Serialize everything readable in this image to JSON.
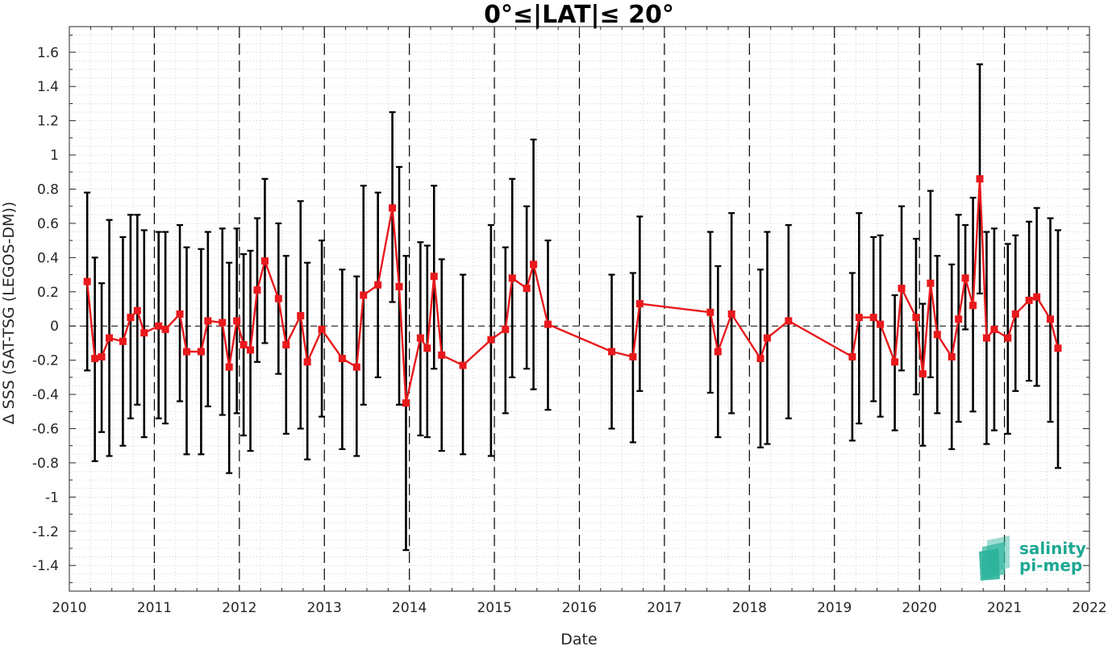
{
  "chart_data": {
    "type": "line",
    "title": "0°≤|LAT|≤ 20°",
    "xlabel": "Date",
    "ylabel": "Δ SSS (SAT-TSG (LEGOS-DM))",
    "xlim": [
      2010,
      2022
    ],
    "ylim": [
      -1.55,
      1.75
    ],
    "x_ticks": [
      "2010",
      "2011",
      "2012",
      "2013",
      "2014",
      "2015",
      "2016",
      "2017",
      "2018",
      "2019",
      "2020",
      "2021",
      "2022"
    ],
    "y_ticks": [
      "-1.4",
      "-1.2",
      "-1",
      "-0.8",
      "-0.6",
      "-0.4",
      "-0.2",
      "0",
      "0.2",
      "0.4",
      "0.6",
      "0.8",
      "1",
      "1.2",
      "1.4",
      "1.6"
    ],
    "grid": true,
    "grid_style": "dotted minor grid",
    "year_lines": "dashed vertical line at each year boundary",
    "zero_line": "dashed horizontal line at 0",
    "series": [
      {
        "color": "#e8191c",
        "errorbar_color": "#000000",
        "marker": "square",
        "points": [
          {
            "x": 2010.21,
            "y": 0.26,
            "lo": -0.26,
            "hi": 0.78
          },
          {
            "x": 2010.3,
            "y": -0.19,
            "lo": -0.79,
            "hi": 0.4
          },
          {
            "x": 2010.38,
            "y": -0.18,
            "lo": -0.62,
            "hi": 0.25
          },
          {
            "x": 2010.47,
            "y": -0.07,
            "lo": -0.76,
            "hi": 0.62
          },
          {
            "x": 2010.63,
            "y": -0.09,
            "lo": -0.7,
            "hi": 0.52
          },
          {
            "x": 2010.72,
            "y": 0.05,
            "lo": -0.54,
            "hi": 0.65
          },
          {
            "x": 2010.8,
            "y": 0.09,
            "lo": -0.46,
            "hi": 0.65
          },
          {
            "x": 2010.88,
            "y": -0.04,
            "lo": -0.65,
            "hi": 0.56
          },
          {
            "x": 2011.05,
            "y": 0.0,
            "lo": -0.54,
            "hi": 0.55
          },
          {
            "x": 2011.13,
            "y": -0.02,
            "lo": -0.57,
            "hi": 0.55
          },
          {
            "x": 2011.3,
            "y": 0.07,
            "lo": -0.44,
            "hi": 0.59
          },
          {
            "x": 2011.38,
            "y": -0.15,
            "lo": -0.75,
            "hi": 0.46
          },
          {
            "x": 2011.55,
            "y": -0.15,
            "lo": -0.75,
            "hi": 0.45
          },
          {
            "x": 2011.63,
            "y": 0.03,
            "lo": -0.47,
            "hi": 0.55
          },
          {
            "x": 2011.8,
            "y": 0.02,
            "lo": -0.52,
            "hi": 0.57
          },
          {
            "x": 2011.88,
            "y": -0.24,
            "lo": -0.86,
            "hi": 0.37
          },
          {
            "x": 2011.97,
            "y": 0.03,
            "lo": -0.51,
            "hi": 0.57
          },
          {
            "x": 2012.05,
            "y": -0.11,
            "lo": -0.64,
            "hi": 0.42
          },
          {
            "x": 2012.13,
            "y": -0.14,
            "lo": -0.73,
            "hi": 0.44
          },
          {
            "x": 2012.21,
            "y": 0.21,
            "lo": -0.21,
            "hi": 0.63
          },
          {
            "x": 2012.3,
            "y": 0.38,
            "lo": -0.1,
            "hi": 0.86
          },
          {
            "x": 2012.46,
            "y": 0.16,
            "lo": -0.28,
            "hi": 0.6
          },
          {
            "x": 2012.55,
            "y": -0.11,
            "lo": -0.63,
            "hi": 0.41
          },
          {
            "x": 2012.72,
            "y": 0.06,
            "lo": -0.6,
            "hi": 0.73
          },
          {
            "x": 2012.8,
            "y": -0.21,
            "lo": -0.78,
            "hi": 0.37
          },
          {
            "x": 2012.97,
            "y": -0.02,
            "lo": -0.53,
            "hi": 0.5
          },
          {
            "x": 2013.21,
            "y": -0.19,
            "lo": -0.72,
            "hi": 0.33
          },
          {
            "x": 2013.38,
            "y": -0.24,
            "lo": -0.76,
            "hi": 0.29
          },
          {
            "x": 2013.46,
            "y": 0.18,
            "lo": -0.46,
            "hi": 0.82
          },
          {
            "x": 2013.63,
            "y": 0.24,
            "lo": -0.3,
            "hi": 0.78
          },
          {
            "x": 2013.8,
            "y": 0.69,
            "lo": 0.14,
            "hi": 1.25
          },
          {
            "x": 2013.88,
            "y": 0.23,
            "lo": -0.46,
            "hi": 0.93
          },
          {
            "x": 2013.96,
            "y": -0.45,
            "lo": -1.31,
            "hi": 0.41
          },
          {
            "x": 2014.13,
            "y": -0.07,
            "lo": -0.64,
            "hi": 0.49
          },
          {
            "x": 2014.21,
            "y": -0.13,
            "lo": -0.65,
            "hi": 0.47
          },
          {
            "x": 2014.29,
            "y": 0.29,
            "lo": -0.25,
            "hi": 0.82
          },
          {
            "x": 2014.38,
            "y": -0.17,
            "lo": -0.73,
            "hi": 0.39
          },
          {
            "x": 2014.63,
            "y": -0.23,
            "lo": -0.75,
            "hi": 0.3
          },
          {
            "x": 2014.96,
            "y": -0.08,
            "lo": -0.76,
            "hi": 0.59
          },
          {
            "x": 2015.13,
            "y": -0.02,
            "lo": -0.51,
            "hi": 0.46
          },
          {
            "x": 2015.21,
            "y": 0.28,
            "lo": -0.3,
            "hi": 0.86
          },
          {
            "x": 2015.38,
            "y": 0.22,
            "lo": -0.25,
            "hi": 0.7
          },
          {
            "x": 2015.46,
            "y": 0.36,
            "lo": -0.37,
            "hi": 1.09
          },
          {
            "x": 2015.63,
            "y": 0.01,
            "lo": -0.49,
            "hi": 0.5
          },
          {
            "x": 2016.38,
            "y": -0.15,
            "lo": -0.6,
            "hi": 0.3
          },
          {
            "x": 2016.63,
            "y": -0.18,
            "lo": -0.68,
            "hi": 0.31
          },
          {
            "x": 2016.71,
            "y": 0.13,
            "lo": -0.38,
            "hi": 0.64
          },
          {
            "x": 2017.54,
            "y": 0.08,
            "lo": -0.39,
            "hi": 0.55
          },
          {
            "x": 2017.63,
            "y": -0.15,
            "lo": -0.65,
            "hi": 0.35
          },
          {
            "x": 2017.79,
            "y": 0.07,
            "lo": -0.51,
            "hi": 0.66
          },
          {
            "x": 2018.13,
            "y": -0.19,
            "lo": -0.71,
            "hi": 0.33
          },
          {
            "x": 2018.21,
            "y": -0.07,
            "lo": -0.69,
            "hi": 0.55
          },
          {
            "x": 2018.46,
            "y": 0.03,
            "lo": -0.54,
            "hi": 0.59
          },
          {
            "x": 2019.21,
            "y": -0.18,
            "lo": -0.67,
            "hi": 0.31
          },
          {
            "x": 2019.29,
            "y": 0.05,
            "lo": -0.57,
            "hi": 0.66
          },
          {
            "x": 2019.46,
            "y": 0.05,
            "lo": -0.44,
            "hi": 0.52
          },
          {
            "x": 2019.54,
            "y": 0.01,
            "lo": -0.53,
            "hi": 0.53
          },
          {
            "x": 2019.71,
            "y": -0.21,
            "lo": -0.61,
            "hi": 0.18
          },
          {
            "x": 2019.79,
            "y": 0.22,
            "lo": -0.26,
            "hi": 0.7
          },
          {
            "x": 2019.96,
            "y": 0.05,
            "lo": -0.4,
            "hi": 0.51
          },
          {
            "x": 2020.04,
            "y": -0.28,
            "lo": -0.7,
            "hi": 0.13
          },
          {
            "x": 2020.13,
            "y": 0.25,
            "lo": -0.3,
            "hi": 0.79
          },
          {
            "x": 2020.21,
            "y": -0.05,
            "lo": -0.51,
            "hi": 0.41
          },
          {
            "x": 2020.38,
            "y": -0.18,
            "lo": -0.72,
            "hi": 0.36
          },
          {
            "x": 2020.46,
            "y": 0.04,
            "lo": -0.56,
            "hi": 0.65
          },
          {
            "x": 2020.54,
            "y": 0.28,
            "lo": -0.02,
            "hi": 0.59
          },
          {
            "x": 2020.63,
            "y": 0.12,
            "lo": -0.5,
            "hi": 0.75
          },
          {
            "x": 2020.71,
            "y": 0.86,
            "lo": 0.19,
            "hi": 1.53
          },
          {
            "x": 2020.79,
            "y": -0.07,
            "lo": -0.69,
            "hi": 0.55
          },
          {
            "x": 2020.88,
            "y": -0.02,
            "lo": -0.61,
            "hi": 0.57
          },
          {
            "x": 2021.04,
            "y": -0.07,
            "lo": -0.63,
            "hi": 0.48
          },
          {
            "x": 2021.13,
            "y": 0.07,
            "lo": -0.38,
            "hi": 0.53
          },
          {
            "x": 2021.29,
            "y": 0.15,
            "lo": -0.32,
            "hi": 0.61
          },
          {
            "x": 2021.38,
            "y": 0.17,
            "lo": -0.35,
            "hi": 0.69
          },
          {
            "x": 2021.54,
            "y": 0.04,
            "lo": -0.56,
            "hi": 0.63
          },
          {
            "x": 2021.63,
            "y": -0.13,
            "lo": -0.83,
            "hi": 0.56
          }
        ]
      }
    ]
  },
  "logo": {
    "line1": "salinity",
    "line2": "pi-mep",
    "text_color": "#1fa892",
    "mark_color": "#2bb39b"
  }
}
